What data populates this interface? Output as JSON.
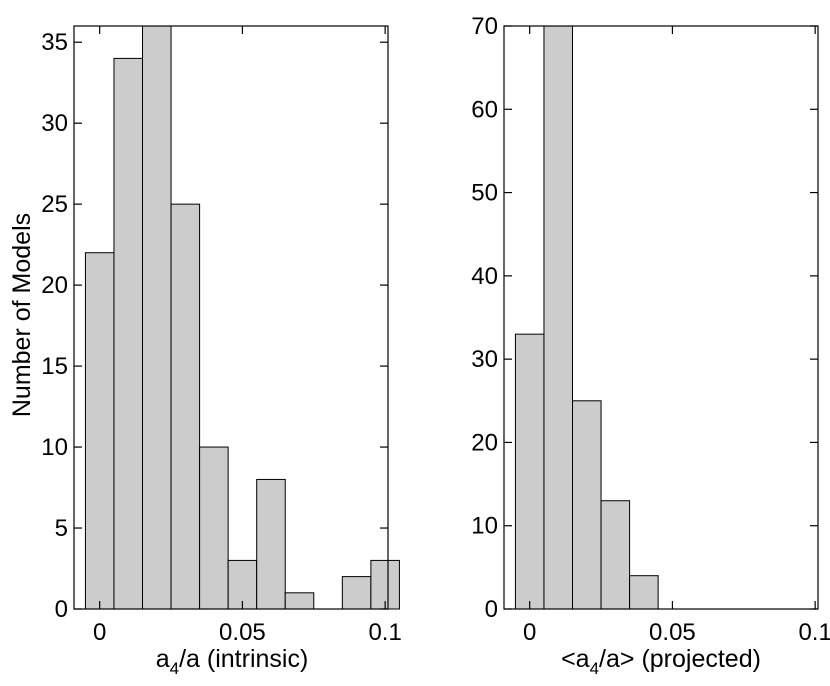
{
  "figure": {
    "ylabel": "Number of Models"
  },
  "chart_data": [
    {
      "type": "bar",
      "xlabel_parts": {
        "pre": "a",
        "sub": "4",
        "post": "/a (intrinsic)"
      },
      "ylabel": "Number of Models",
      "bin_width": 0.01,
      "x": [
        0,
        0.01,
        0.02,
        0.03,
        0.04,
        0.05,
        0.06,
        0.07,
        0.08,
        0.09,
        0.1
      ],
      "values": [
        22,
        34,
        36,
        25,
        10,
        3,
        8,
        1,
        0,
        2,
        3
      ],
      "xlim": [
        -0.009,
        0.101
      ],
      "ylim": [
        0,
        36
      ],
      "xticks": [
        0,
        0.05,
        0.1
      ],
      "xtick_labels": [
        "0",
        "0.05",
        "0.1"
      ],
      "yticks": [
        0,
        5,
        10,
        15,
        20,
        25,
        30,
        35
      ],
      "ytick_labels": [
        "0",
        "5",
        "10",
        "15",
        "20",
        "25",
        "30",
        "35"
      ],
      "bar_color": "#cccccc",
      "grid": false
    },
    {
      "type": "bar",
      "xlabel_parts": {
        "pre": "<a",
        "sub": "4",
        "post": "/a> (projected)"
      },
      "bin_width": 0.01,
      "x": [
        0,
        0.01,
        0.02,
        0.03,
        0.04
      ],
      "values": [
        33,
        70,
        25,
        13,
        4
      ],
      "xlim": [
        -0.009,
        0.101
      ],
      "ylim": [
        0,
        70
      ],
      "xticks": [
        0,
        0.05,
        0.1
      ],
      "xtick_labels": [
        "0",
        "0.05",
        "0.1"
      ],
      "yticks": [
        0,
        10,
        20,
        30,
        40,
        50,
        60,
        70
      ],
      "ytick_labels": [
        "0",
        "10",
        "20",
        "30",
        "40",
        "50",
        "60",
        "70"
      ],
      "bar_color": "#cccccc",
      "grid": false
    }
  ]
}
